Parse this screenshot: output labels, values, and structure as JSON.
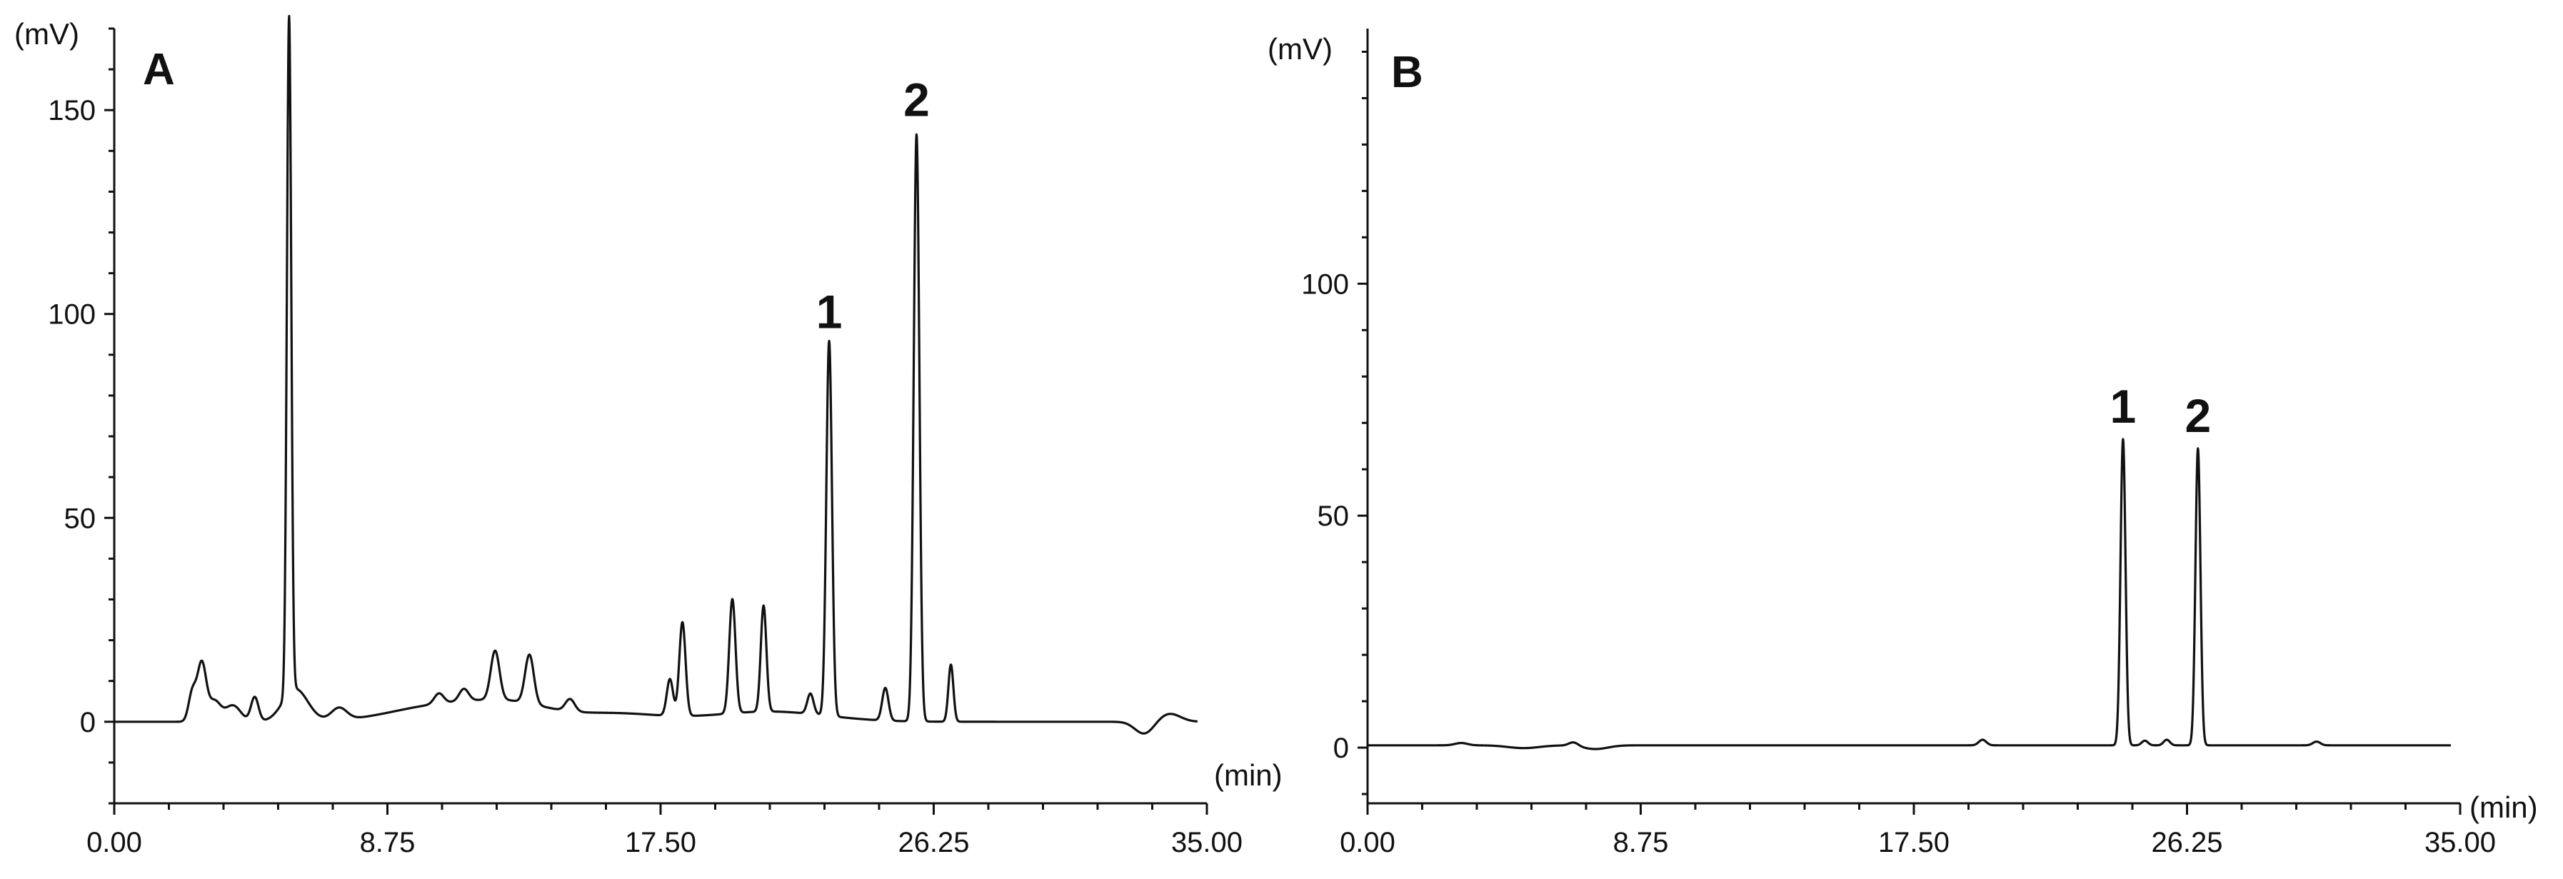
{
  "chart_data": [
    {
      "type": "line",
      "panel_label": "A",
      "xlabel": "(min)",
      "ylabel": "(mV)",
      "xlim": [
        0,
        35
      ],
      "ylim": [
        -20,
        170
      ],
      "x_ticks": [
        0,
        8.75,
        17.5,
        26.25,
        35
      ],
      "x_tick_labels": [
        "0.00",
        "8.75",
        "17.50",
        "26.25",
        "35.00"
      ],
      "y_ticks": [
        0,
        50,
        100,
        150
      ],
      "y_tick_labels": [
        "0",
        "50",
        "100",
        "150"
      ],
      "grid": false,
      "baseline": 0,
      "peaks": [
        {
          "t": 2.5,
          "h": 7,
          "w": 0.12
        },
        {
          "t": 2.8,
          "h": 14,
          "w": 0.14
        },
        {
          "t": 3.2,
          "h": 5,
          "w": 0.2
        },
        {
          "t": 3.8,
          "h": 4,
          "w": 0.25
        },
        {
          "t": 4.5,
          "h": 6,
          "w": 0.12
        },
        {
          "t": 5.6,
          "h": 166,
          "w": 0.07
        },
        {
          "t": 5.8,
          "h": 8,
          "w": 0.4
        },
        {
          "t": 7.2,
          "h": 3,
          "w": 0.25
        },
        {
          "t": 10.4,
          "h": 2.5,
          "w": 0.15
        },
        {
          "t": 11.2,
          "h": 3,
          "w": 0.15
        },
        {
          "t": 12.2,
          "h": 12,
          "w": 0.14
        },
        {
          "t": 13.3,
          "h": 12,
          "w": 0.14
        },
        {
          "t": 14.6,
          "h": 3,
          "w": 0.15
        },
        {
          "t": 17.8,
          "h": 9,
          "w": 0.1
        },
        {
          "t": 18.2,
          "h": 23,
          "w": 0.1
        },
        {
          "t": 19.8,
          "h": 28,
          "w": 0.1
        },
        {
          "t": 20.8,
          "h": 26,
          "w": 0.09
        },
        {
          "t": 22.3,
          "h": 5,
          "w": 0.1
        },
        {
          "t": 22.9,
          "h": 92,
          "w": 0.09
        },
        {
          "t": 24.7,
          "h": 8,
          "w": 0.1
        },
        {
          "t": 25.7,
          "h": 144,
          "w": 0.09
        },
        {
          "t": 26.8,
          "h": 14,
          "w": 0.08
        }
      ],
      "humps": [
        {
          "t": 10.5,
          "h": 4,
          "w": 1.6
        },
        {
          "t": 12.8,
          "h": 3.5,
          "w": 1.2
        },
        {
          "t": 16.0,
          "h": 2,
          "w": 1.5
        },
        {
          "t": 21.0,
          "h": 2.5,
          "w": 1.8
        }
      ],
      "dips": [
        {
          "t": 33.0,
          "h": -3,
          "w": 0.3
        },
        {
          "t": 33.8,
          "h": 2,
          "w": 0.35
        }
      ],
      "annotations": [
        {
          "text": "1",
          "x": 22.9,
          "y": 92
        },
        {
          "text": "2",
          "x": 25.7,
          "y": 144
        }
      ]
    },
    {
      "type": "line",
      "panel_label": "B",
      "xlabel": "(min)",
      "ylabel": "(mV)",
      "xlim": [
        0,
        35
      ],
      "ylim": [
        -12,
        155
      ],
      "x_ticks": [
        0,
        8.75,
        17.5,
        26.25,
        35
      ],
      "x_tick_labels": [
        "0.00",
        "8.75",
        "17.50",
        "26.25",
        "35.00"
      ],
      "y_ticks": [
        0,
        50,
        100
      ],
      "y_tick_labels": [
        "0",
        "50",
        "100"
      ],
      "grid": false,
      "baseline": 0.5,
      "peaks": [
        {
          "t": 3.0,
          "h": 0.5,
          "w": 0.2
        },
        {
          "t": 6.6,
          "h": 0.8,
          "w": 0.15
        },
        {
          "t": 19.7,
          "h": 1.2,
          "w": 0.12
        },
        {
          "t": 24.2,
          "h": 66,
          "w": 0.08
        },
        {
          "t": 24.9,
          "h": 1,
          "w": 0.1
        },
        {
          "t": 25.6,
          "h": 1.2,
          "w": 0.1
        },
        {
          "t": 26.6,
          "h": 64,
          "w": 0.08
        },
        {
          "t": 30.4,
          "h": 0.8,
          "w": 0.12
        }
      ],
      "humps": [],
      "dips": [
        {
          "t": 5.0,
          "h": -0.6,
          "w": 0.5
        },
        {
          "t": 7.3,
          "h": -0.8,
          "w": 0.4
        }
      ],
      "annotations": [
        {
          "text": "1",
          "x": 24.2,
          "y": 66
        },
        {
          "text": "2",
          "x": 26.6,
          "y": 64
        }
      ]
    }
  ]
}
